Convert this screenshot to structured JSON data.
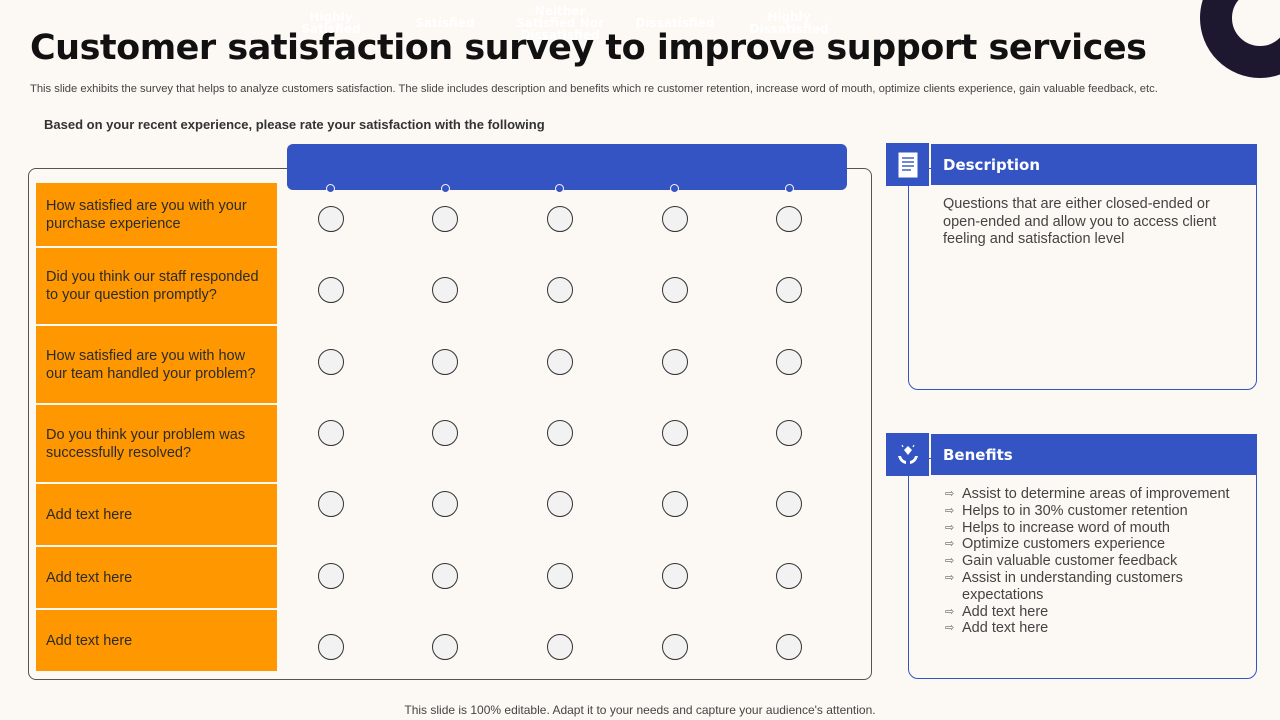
{
  "title": "Customer satisfaction survey to improve support services",
  "subtitle": "This slide exhibits the survey that helps to analyze customers satisfaction. The slide includes description and benefits which re customer retention, increase word of mouth, optimize clients experience, gain valuable feedback, etc.",
  "prompt": "Based on your recent experience, please rate your satisfaction  with the following",
  "scale": [
    "Highly Satisfied",
    "Satisfied",
    "Neither Satisfied Nor Dissatisfied",
    "Dissatisfied",
    "Highly Dissatisfied"
  ],
  "questions": [
    "How satisfied are you with your purchase experience",
    "Did you think our staff responded to your question promptly?",
    "How satisfied are you with how our team handled your problem?",
    "Do you think your problem was successfully resolved?",
    "Add text here",
    "Add text here",
    "Add text here"
  ],
  "description": {
    "heading": "Description",
    "icon": "document-icon",
    "text": "Questions that are either closed-ended or open-ended and allow you to access client feeling and satisfaction level"
  },
  "benefits": {
    "heading": "Benefits",
    "icon": "hands-diamond-icon",
    "items": [
      "Assist to determine areas of improvement",
      "Helps to in 30% customer retention",
      "Helps to increase word of mouth",
      "Optimize customers experience",
      "Gain valuable customer feedback",
      "Assist in understanding customers expectations",
      "Add text here",
      "Add text here"
    ]
  },
  "footer": "This slide is 100% editable. Adapt it to your needs and capture your audience's attention.",
  "colors": {
    "accent_blue": "#3554c4",
    "question_orange": "#ff9800",
    "background": "#fcf8f3"
  }
}
